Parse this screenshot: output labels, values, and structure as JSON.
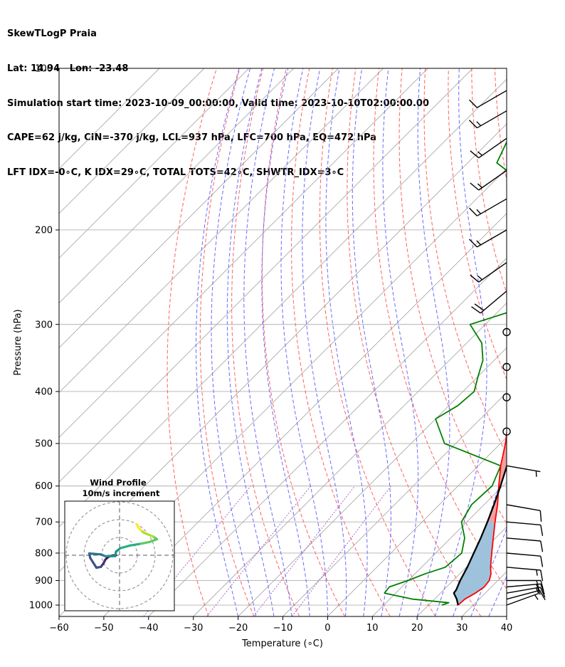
{
  "header": {
    "line1": "SkewTLogP Praia",
    "line2": "Lat: 14.94   Lon: -23.48",
    "line3": "Simulation start time: 2023-10-09_00:00:00, Valid time: 2023-10-10T02:00:00.00",
    "line4": "CAPE=62 j/kg, CIN=-370 j/kg, LCL=937 hPa, LFC=700 hPa, EQ=472 hPa",
    "line5": "LFT IDX=-0∘C, K IDX=29∘C, TOTAL TOTS=42∘C, SHWTR_IDX=3∘C"
  },
  "colors": {
    "temperature": "#ff0000",
    "dewpoint": "#008000",
    "parcel": "#000000",
    "cape_fill": "#9ec2dc",
    "cin_fill": "#f2a0a0",
    "dry_adiabat": "#ff6060",
    "moist_adiabat": "#6a6aff",
    "mixing_ratio": "#9a40c0",
    "isotherm": "#aaaaaa"
  },
  "chart_data": [
    {
      "type": "line",
      "subtype": "skew-t log-p",
      "title": "",
      "xlabel": "Temperature (∘C)",
      "ylabel": "Pressure (hPa)",
      "xlim": [
        -60,
        40
      ],
      "ylim": [
        1050,
        100
      ],
      "y_scale": "log",
      "x_ticks": [
        -60,
        -50,
        -40,
        -30,
        -20,
        -10,
        0,
        10,
        20,
        30,
        40
      ],
      "x_tick_labels": [
        "−60",
        "−50",
        "−40",
        "−30",
        "−20",
        "−10",
        "0",
        "10",
        "20",
        "30",
        "40"
      ],
      "y_ticks": [
        1000,
        900,
        800,
        700,
        600,
        500,
        400,
        300,
        200,
        100
      ],
      "y_tick_labels": [
        "1000",
        "900",
        "800",
        "700",
        "600",
        "500",
        "400",
        "300",
        "200",
        "100"
      ],
      "grid": true,
      "series": [
        {
          "key": "temperature",
          "p": [
            1000,
            975,
            950,
            925,
            900,
            875,
            850,
            800,
            750,
            700,
            650,
            600,
            550,
            500,
            450,
            400,
            350,
            300,
            250,
            200,
            175,
            150,
            125,
            110,
            100
          ],
          "t": [
            26.6,
            26.8,
            27.8,
            28.4,
            28.1,
            27.0,
            25.4,
            22.5,
            19.5,
            16.3,
            13.0,
            9.1,
            5.0,
            1.1,
            -3.7,
            -9.3,
            -15.5,
            -23.9,
            -33.0,
            -43.5,
            -50.0,
            -56.7,
            -63.0,
            -63.2,
            -63.5
          ]
        },
        {
          "key": "dewpoint",
          "p": [
            1000,
            990,
            975,
            950,
            925,
            900,
            875,
            850,
            800,
            750,
            700,
            650,
            600,
            550,
            500,
            450,
            425,
            400,
            375,
            350,
            325,
            300,
            275,
            260,
            250,
            225,
            200,
            175,
            150,
            125,
            110,
            100
          ],
          "t": [
            23.0,
            24.0,
            15.2,
            7.5,
            7.2,
            9.9,
            12.2,
            15.3,
            15.8,
            13.1,
            8.8,
            7.2,
            7.6,
            5.0,
            -12.5,
            -20.0,
            -18.0,
            -17.5,
            -20.0,
            -22.5,
            -26.6,
            -33.4,
            -23.7,
            -23.0,
            -24.5,
            -27.7,
            -33.0,
            -45.0,
            -63.5,
            -68.5,
            -70.0,
            -71.5
          ]
        },
        {
          "key": "parcel",
          "p": [
            1000,
            975,
            950,
            937,
            900,
            850,
            800,
            750,
            700,
            650,
            600,
            550,
            500,
            472,
            450,
            400,
            350,
            300,
            250,
            200,
            175,
            150,
            125,
            110,
            100
          ],
          "t": [
            26.6,
            25.0,
            23.0,
            22.8,
            21.6,
            20.2,
            18.5,
            16.7,
            14.6,
            12.2,
            9.5,
            6.4,
            3.0,
            1.0,
            -1.6,
            -7.5,
            -14.7,
            -23.4,
            -33.8,
            -46.0,
            -53.0,
            -60.3,
            -67.7,
            -71.8,
            -74.7
          ]
        }
      ],
      "wind_barbs": {
        "note_levels": [
          "1000",
          "975",
          "950",
          "925",
          "900",
          "850",
          "800",
          "750",
          "700",
          "650",
          "550",
          "475",
          "410",
          "360",
          "310",
          "260",
          "230",
          "200",
          "175",
          "155",
          "135",
          "120",
          "110"
        ],
        "speed_kt": [
          6,
          12,
          17,
          20,
          18,
          15,
          12,
          11,
          10,
          8,
          6,
          0,
          0,
          0,
          0,
          18,
          17,
          16,
          14,
          13,
          16,
          14,
          12
        ],
        "direction_deg": [
          70,
          75,
          80,
          85,
          90,
          95,
          95,
          95,
          95,
          100,
          100,
          0,
          0,
          0,
          0,
          230,
          235,
          240,
          240,
          235,
          235,
          240,
          240
        ]
      }
    },
    {
      "type": "line",
      "subtype": "hodograph",
      "title": "Wind Profile",
      "subtitle": "10m/s increment",
      "rings_ms": [
        10,
        20,
        30
      ],
      "u": [
        -2.0,
        -4.0,
        -6.5,
        -8.0,
        -9.0,
        -10.5,
        -13.0,
        -16.5,
        -17.0,
        -10.5,
        -8.0,
        -2.5,
        -2.0,
        0.5,
        6.0,
        12.0,
        17.0,
        21.0,
        19.0,
        14.0,
        12.0,
        11.0,
        9.5
      ],
      "v": [
        0.0,
        -0.2,
        -1.0,
        -2.5,
        -4.5,
        -6.5,
        -7.0,
        -1.5,
        1.0,
        0.5,
        -0.5,
        -0.5,
        2.0,
        4.0,
        5.5,
        6.5,
        7.5,
        9.0,
        10.5,
        12.5,
        14.0,
        15.0,
        17.5
      ]
    }
  ]
}
